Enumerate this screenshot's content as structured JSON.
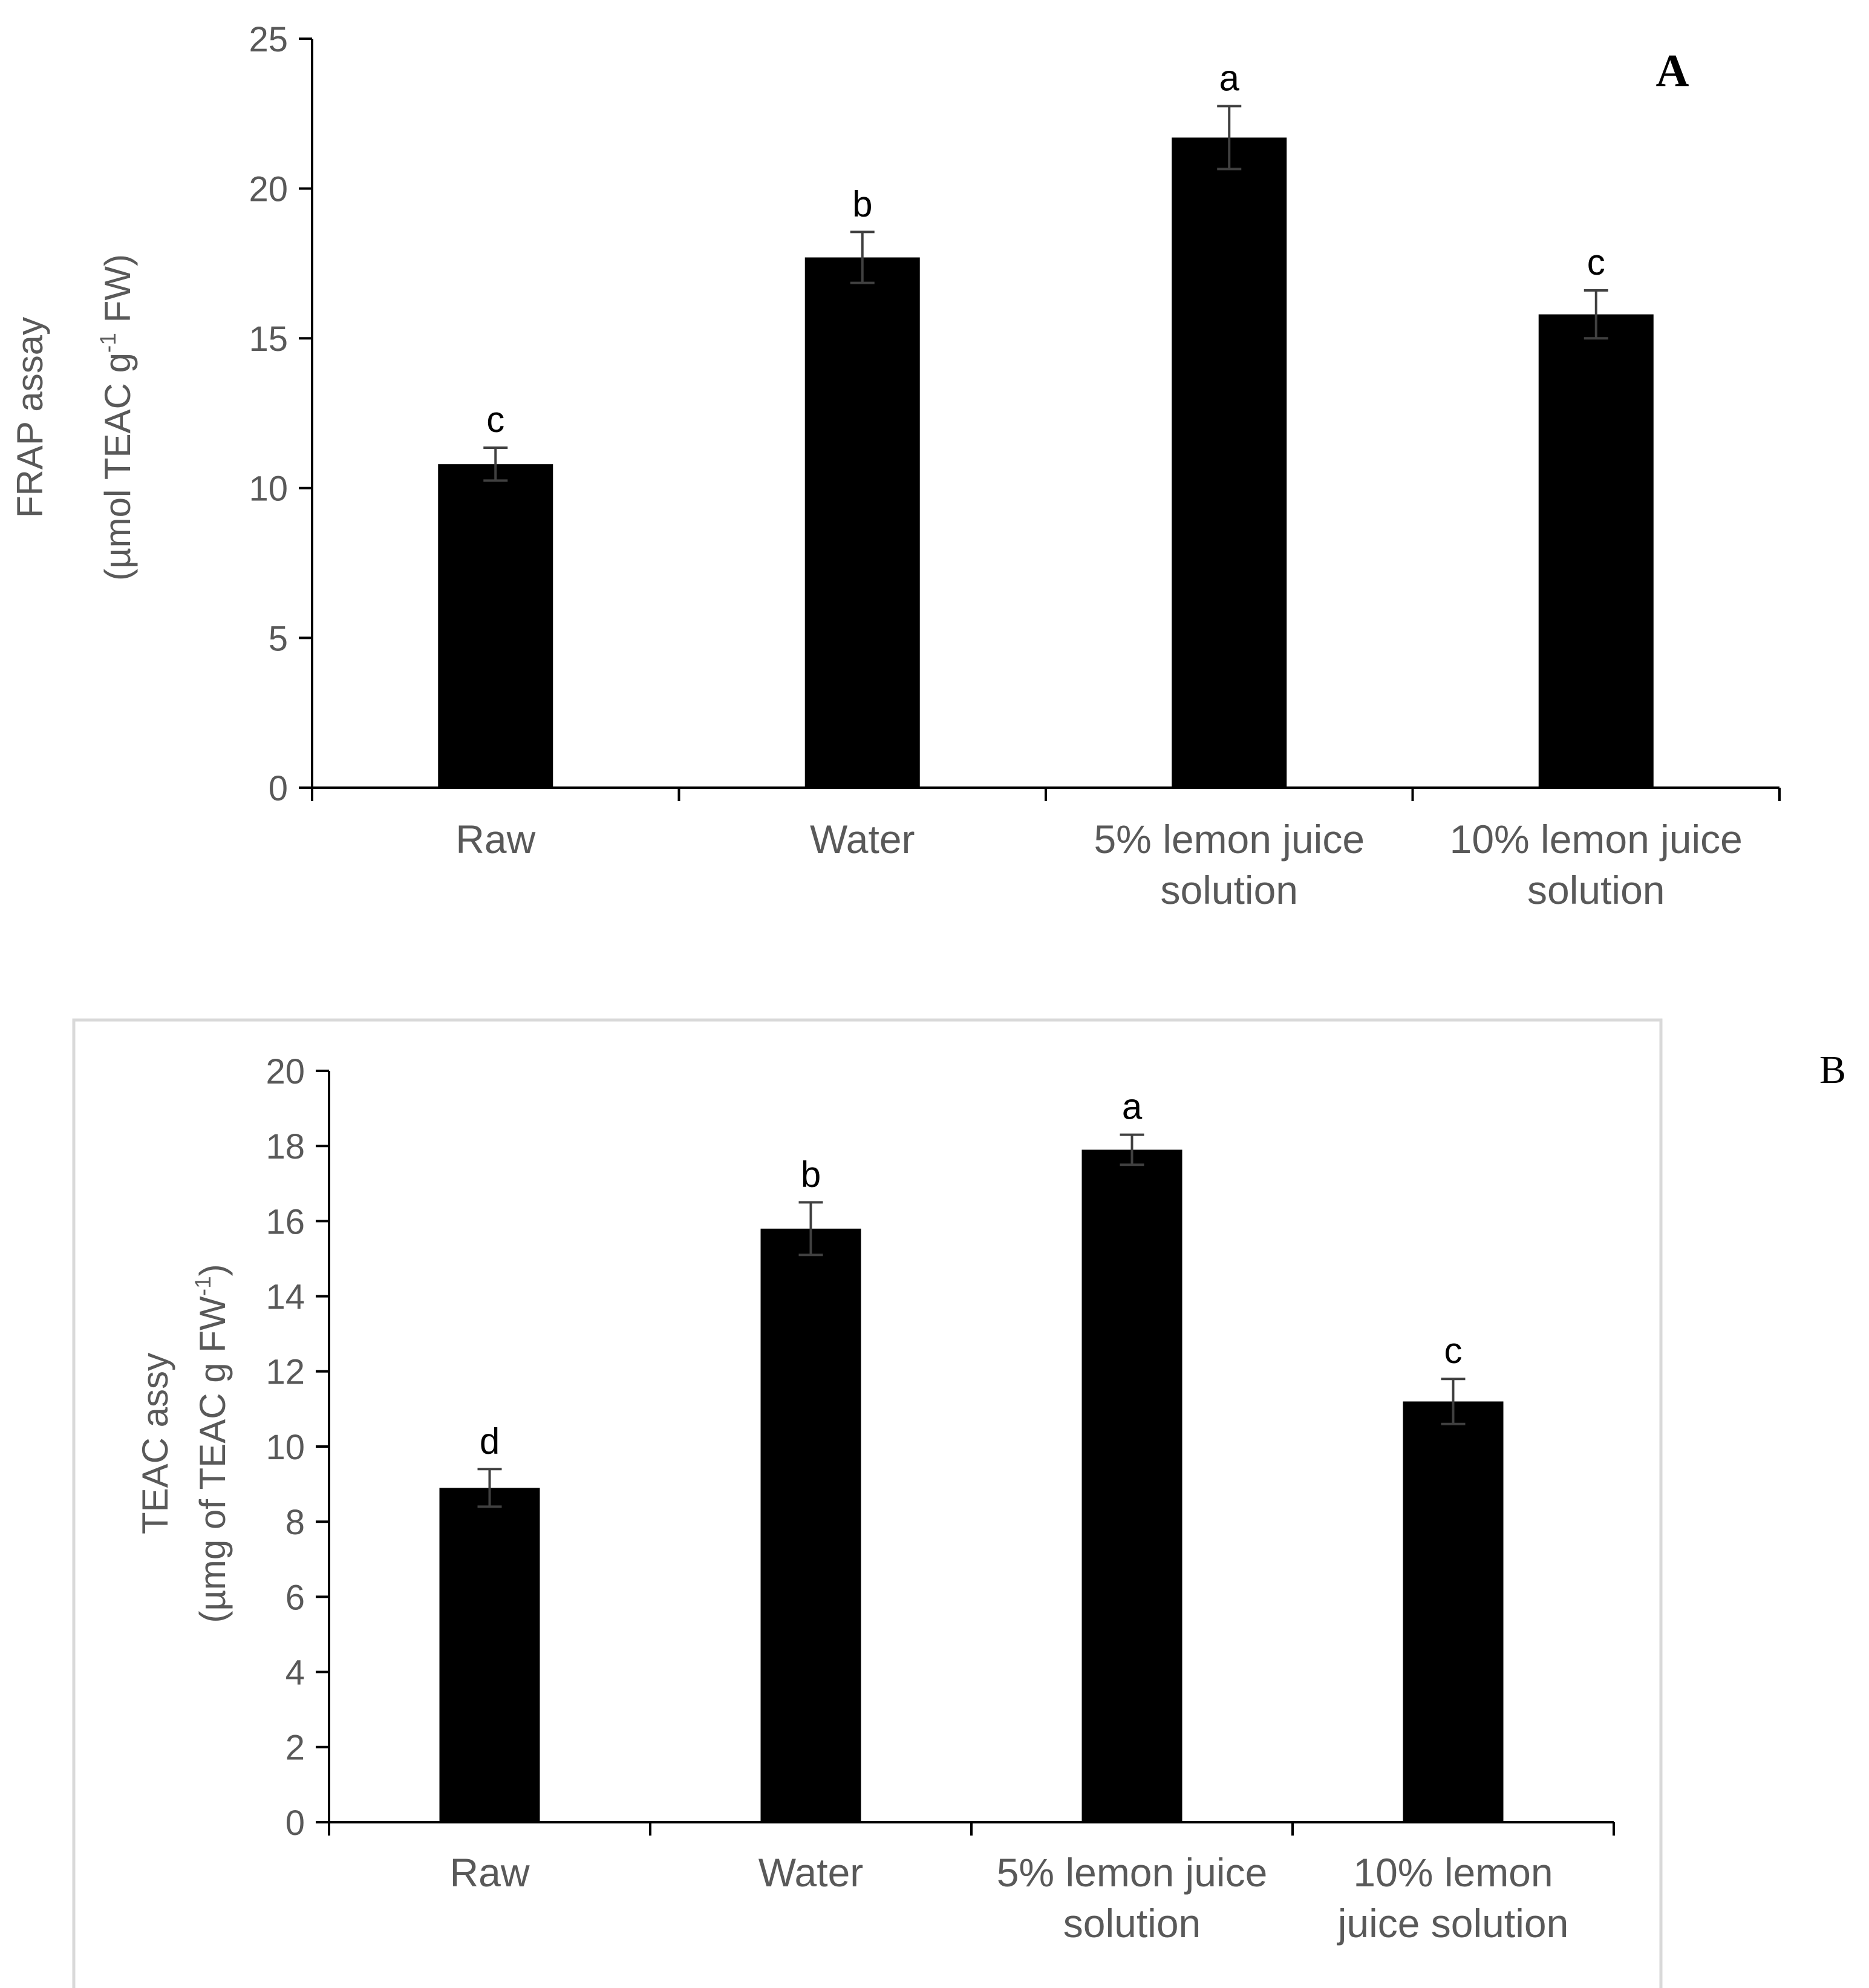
{
  "chart_data": [
    {
      "type": "bar",
      "panel_label": "A",
      "categories": [
        [
          "Raw"
        ],
        [
          "Water"
        ],
        [
          "5%  lemon juice",
          "solution"
        ],
        [
          "10% lemon juice",
          "solution"
        ]
      ],
      "values": [
        10.8,
        17.7,
        21.7,
        15.8
      ],
      "errors": [
        0.55,
        0.85,
        1.05,
        0.8
      ],
      "significance": [
        "c",
        "b",
        "a",
        "c"
      ],
      "ylabel": [
        "FRAP assay",
        "(µmol TEAC g",
        "-1",
        " FW)"
      ],
      "ylim": [
        0,
        25
      ],
      "yticks": [
        0,
        5,
        10,
        15,
        20,
        25
      ],
      "grid": false,
      "bar_color": "#000000"
    },
    {
      "type": "bar",
      "panel_label": "B",
      "categories": [
        [
          "Raw"
        ],
        [
          "Water"
        ],
        [
          "5%  lemon juice",
          "solution"
        ],
        [
          "10% lemon",
          "juice solution"
        ]
      ],
      "values": [
        8.9,
        15.8,
        17.9,
        11.2
      ],
      "errors": [
        0.5,
        0.7,
        0.4,
        0.6
      ],
      "significance": [
        "d",
        "b",
        "a",
        "c"
      ],
      "ylabel": [
        "TEAC assy",
        "(µmg of TEAC g FW",
        "-1",
        ")"
      ],
      "ylim": [
        0,
        20
      ],
      "yticks": [
        0,
        2,
        4,
        6,
        8,
        10,
        12,
        14,
        16,
        18,
        20
      ],
      "grid": false,
      "bar_color": "#000000"
    }
  ],
  "colors": {
    "axis": "#000000",
    "panel_border": "#d9d9d9",
    "error_bar": "#404040",
    "tick_text": "#595959"
  }
}
